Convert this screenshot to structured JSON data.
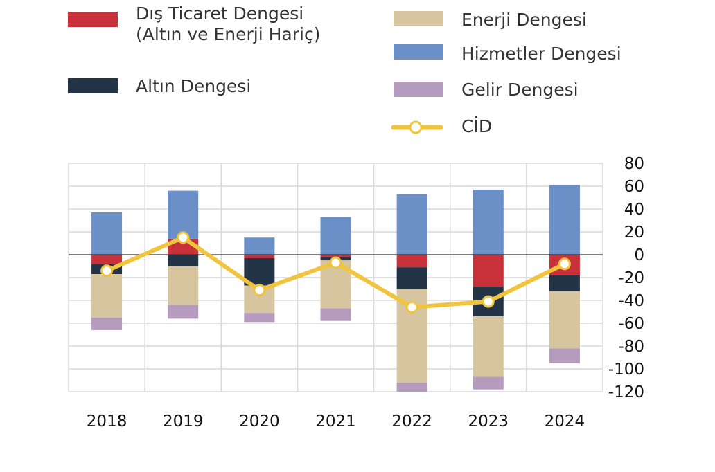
{
  "chart_data": {
    "type": "bar",
    "stacked": true,
    "categories": [
      "2018",
      "2019",
      "2020",
      "2021",
      "2022",
      "2023",
      "2024"
    ],
    "ylim": [
      -120,
      80
    ],
    "yticks": [
      80,
      60,
      40,
      20,
      0,
      -20,
      -40,
      -60,
      -80,
      -100,
      -120
    ],
    "grid": true,
    "legend_position": "top",
    "series": [
      {
        "name": "Dış Ticaret Dengesi (Altın ve Enerji Hariç)",
        "legend_lines": [
          "Dış Ticaret Dengesi",
          "(Altın ve Enerji Hariç)"
        ],
        "color": "#c8303a",
        "values": [
          -8,
          14,
          -3,
          -2,
          -11,
          -28,
          -18
        ]
      },
      {
        "name": "Altın Dengesi",
        "color": "#243447",
        "values": [
          -9,
          -10,
          -24,
          -3,
          -19,
          -26,
          -14
        ]
      },
      {
        "name": "Enerji Dengesi",
        "color": "#d7c5a0",
        "values": [
          -38,
          -34,
          -24,
          -42,
          -82,
          -53,
          -50
        ]
      },
      {
        "name": "Hizmetler Dengesi",
        "color": "#6b8fc7",
        "values": [
          37,
          42,
          15,
          33,
          53,
          57,
          61
        ]
      },
      {
        "name": "Gelir Dengesi",
        "color": "#b59bbd",
        "values": [
          -11,
          -12,
          -8,
          -11,
          -8,
          -11,
          -13
        ]
      }
    ],
    "line": {
      "name": "CİD",
      "color": "#f0c43c",
      "values": [
        -14,
        15,
        -31,
        -7,
        -46,
        -41,
        -8
      ]
    }
  }
}
